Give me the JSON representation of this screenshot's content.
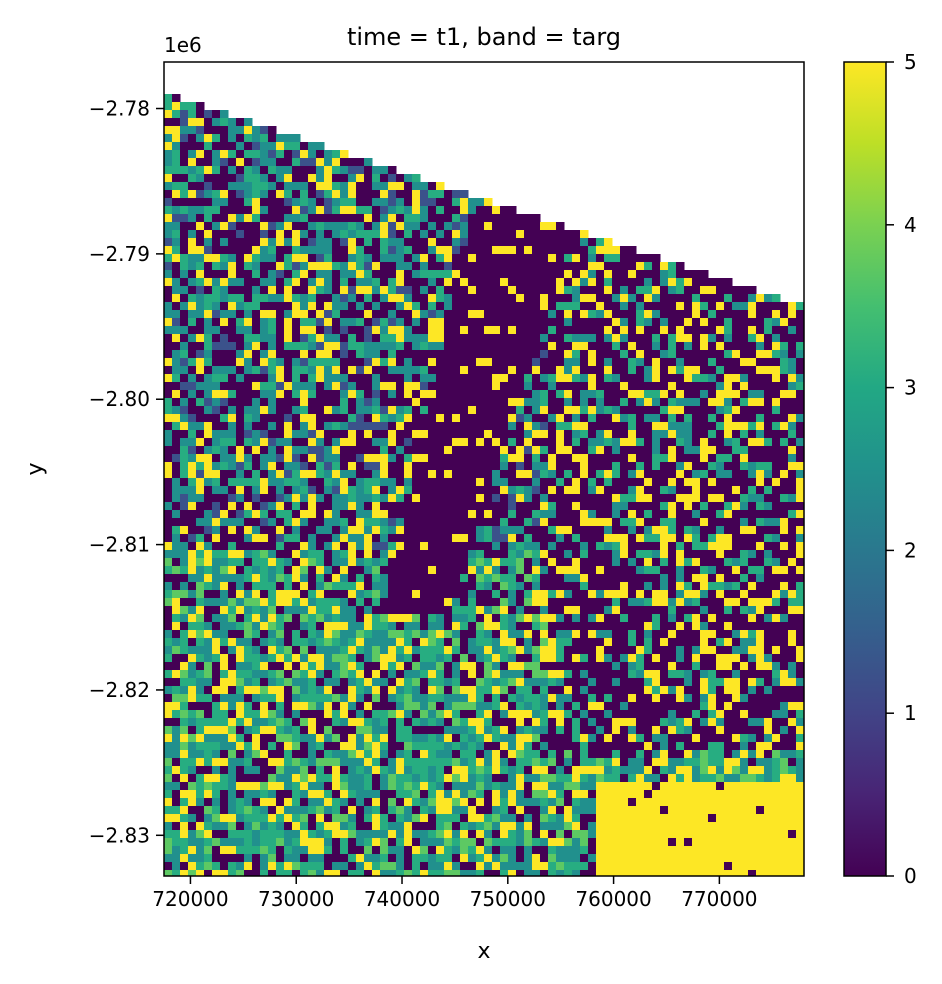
{
  "chart_data": {
    "type": "heatmap",
    "title": "time = t1, band = targ",
    "xlabel": "x",
    "ylabel": "y",
    "y_offset_label": "1e6",
    "xlim": [
      717500,
      778000
    ],
    "ylim": [
      -2.8328,
      -2.7768
    ],
    "x_ticks": [
      720000,
      730000,
      740000,
      750000,
      760000,
      770000
    ],
    "x_tick_labels": [
      "720000",
      "730000",
      "740000",
      "750000",
      "760000",
      "770000"
    ],
    "y_ticks": [
      -2.78,
      -2.79,
      -2.8,
      -2.81,
      -2.82,
      -2.83
    ],
    "y_tick_labels": [
      "−2.78",
      "−2.79",
      "−2.80",
      "−2.81",
      "−2.82",
      "−2.83"
    ],
    "colorbar": {
      "colormap": "viridis",
      "range": [
        0,
        5
      ],
      "ticks": [
        0,
        1,
        2,
        3,
        4,
        5
      ],
      "tick_labels": [
        "0",
        "1",
        "2",
        "3",
        "4",
        "5"
      ]
    },
    "colors": {
      "class_0": "#440154",
      "class_1": "#3b528b",
      "class_2": "#21908d",
      "class_3": "#27ad81",
      "class_4": "#5dc963",
      "class_5": "#fde725",
      "nodata": "#ffffff"
    },
    "regions": {
      "nodata": "white wedge along the top edge above a diagonal line (data edge starts at y≈-2.779 on the left, falls to y≈-2.7935 on the right)",
      "river_channel": "class 0 (purple) band running from upper-center toward the center",
      "bottom_right_block": "class 5 (yellow) solid area in lower-right corner",
      "background": "mixed pixels of classes 0–5"
    },
    "grid": false,
    "legend": "none"
  }
}
